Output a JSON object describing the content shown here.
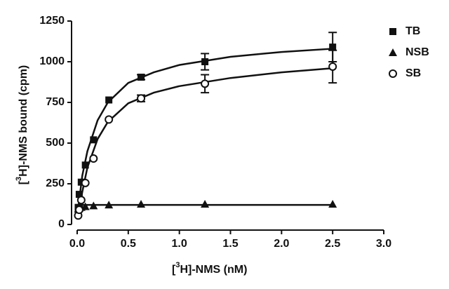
{
  "chart_data": {
    "type": "scatter",
    "x_label": {
      "pre": "[",
      "sup": "3",
      "post": "H]-NMS  (nM)"
    },
    "y_label": {
      "pre": "[",
      "sup": "3",
      "post": "H]-NMS bound (cpm)"
    },
    "xlim": [
      0,
      3
    ],
    "ylim": [
      0,
      1250
    ],
    "xticks": [
      {
        "value": 0,
        "label": "0.0"
      },
      0.5,
      {
        "value": 1,
        "label": "1.0"
      },
      1.5,
      {
        "value": 2,
        "label": "2.0"
      },
      2.5,
      {
        "value": 3,
        "label": "3.0"
      }
    ],
    "yticks": [
      0,
      250,
      500,
      750,
      1000,
      1250
    ],
    "legend": "top-right",
    "series": [
      {
        "name": "TB",
        "color": "#111111",
        "marker": "square",
        "x": [
          0.01,
          0.02,
          0.04,
          0.08,
          0.16,
          0.31,
          0.625,
          1.25,
          2.5
        ],
        "values": [
          105,
          185,
          260,
          365,
          520,
          765,
          905,
          1000,
          1090
        ],
        "errors": [
          null,
          null,
          null,
          null,
          null,
          null,
          15,
          50,
          90
        ]
      },
      {
        "name": "NSB",
        "color": "#111111",
        "marker": "triangle",
        "x": [
          0.01,
          0.02,
          0.04,
          0.08,
          0.16,
          0.31,
          0.625,
          1.25,
          2.5
        ],
        "values": [
          95,
          100,
          105,
          110,
          115,
          120,
          125,
          125,
          125
        ],
        "errors": [
          null,
          null,
          null,
          null,
          null,
          null,
          null,
          null,
          null
        ]
      },
      {
        "name": "SB",
        "color": "#111111",
        "marker": "circle-open",
        "x": [
          0.01,
          0.02,
          0.04,
          0.08,
          0.16,
          0.31,
          0.625,
          1.25,
          2.5
        ],
        "values": [
          55,
          90,
          150,
          255,
          405,
          645,
          775,
          865,
          970
        ],
        "errors": [
          null,
          null,
          null,
          null,
          null,
          null,
          20,
          55,
          100
        ]
      }
    ],
    "curves": [
      {
        "color": "#111111",
        "x": [
          0.01,
          0.05,
          0.1,
          0.2,
          0.3,
          0.5,
          0.75,
          1,
          1.5,
          2,
          2.5
        ],
        "values": [
          100,
          300,
          450,
          640,
          750,
          870,
          935,
          980,
          1030,
          1060,
          1080
        ]
      },
      {
        "color": "#111111",
        "x": [
          0.01,
          2.5
        ],
        "values": [
          120,
          120
        ]
      },
      {
        "color": "#111111",
        "x": [
          0.01,
          0.05,
          0.1,
          0.2,
          0.3,
          0.5,
          0.75,
          1,
          1.5,
          2,
          2.5
        ],
        "values": [
          50,
          200,
          350,
          525,
          630,
          745,
          810,
          850,
          900,
          935,
          960
        ]
      }
    ]
  }
}
